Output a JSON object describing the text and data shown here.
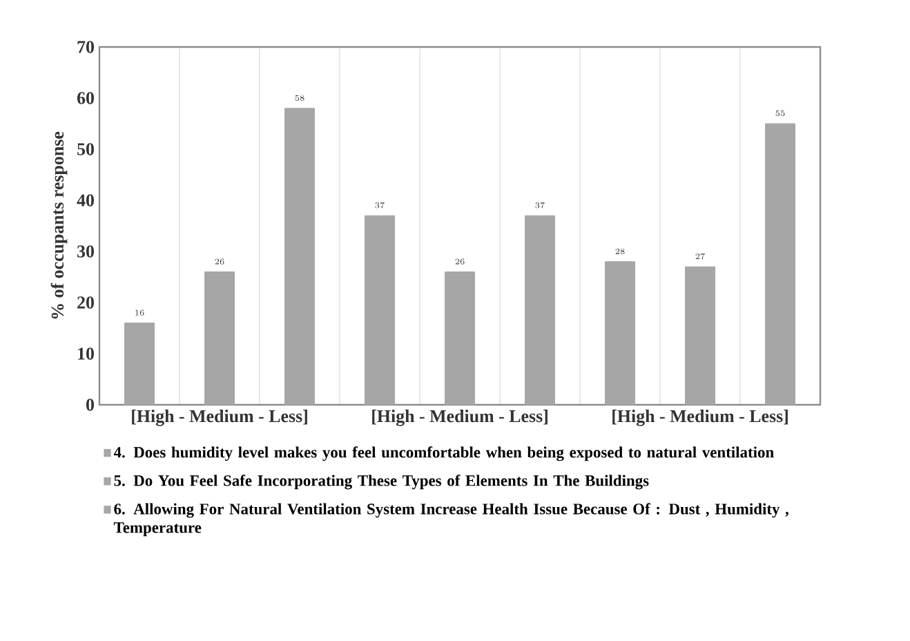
{
  "chart_data": {
    "type": "bar",
    "ylabel": "% of occupants response",
    "categories": [
      "[High - Medium - Less]",
      "[High - Medium - Less]",
      "[High - Medium - Less]"
    ],
    "series": [
      {
        "name": "4. Does humidity level makes you feel uncomfortable when being exposed to natural ventilation",
        "color": "#a6a6a6",
        "values": [
          16,
          37,
          28
        ]
      },
      {
        "name": "5. Do You Feel Safe Incorporating These Types of Elements In The Buildings",
        "color": "#a6a6a6",
        "values": [
          26,
          26,
          27
        ]
      },
      {
        "name": "6. Allowing For Natural Ventilation System Increase Health Issue Because Of : Dust , Humidity , Temperature",
        "color": "#a6a6a6",
        "values": [
          58,
          37,
          55
        ]
      }
    ],
    "ylim": [
      0,
      70
    ],
    "yticks": [
      0,
      10,
      20,
      30,
      40,
      50,
      60,
      70
    ],
    "grid": "x",
    "legend": "bottom",
    "data_labels": true
  }
}
